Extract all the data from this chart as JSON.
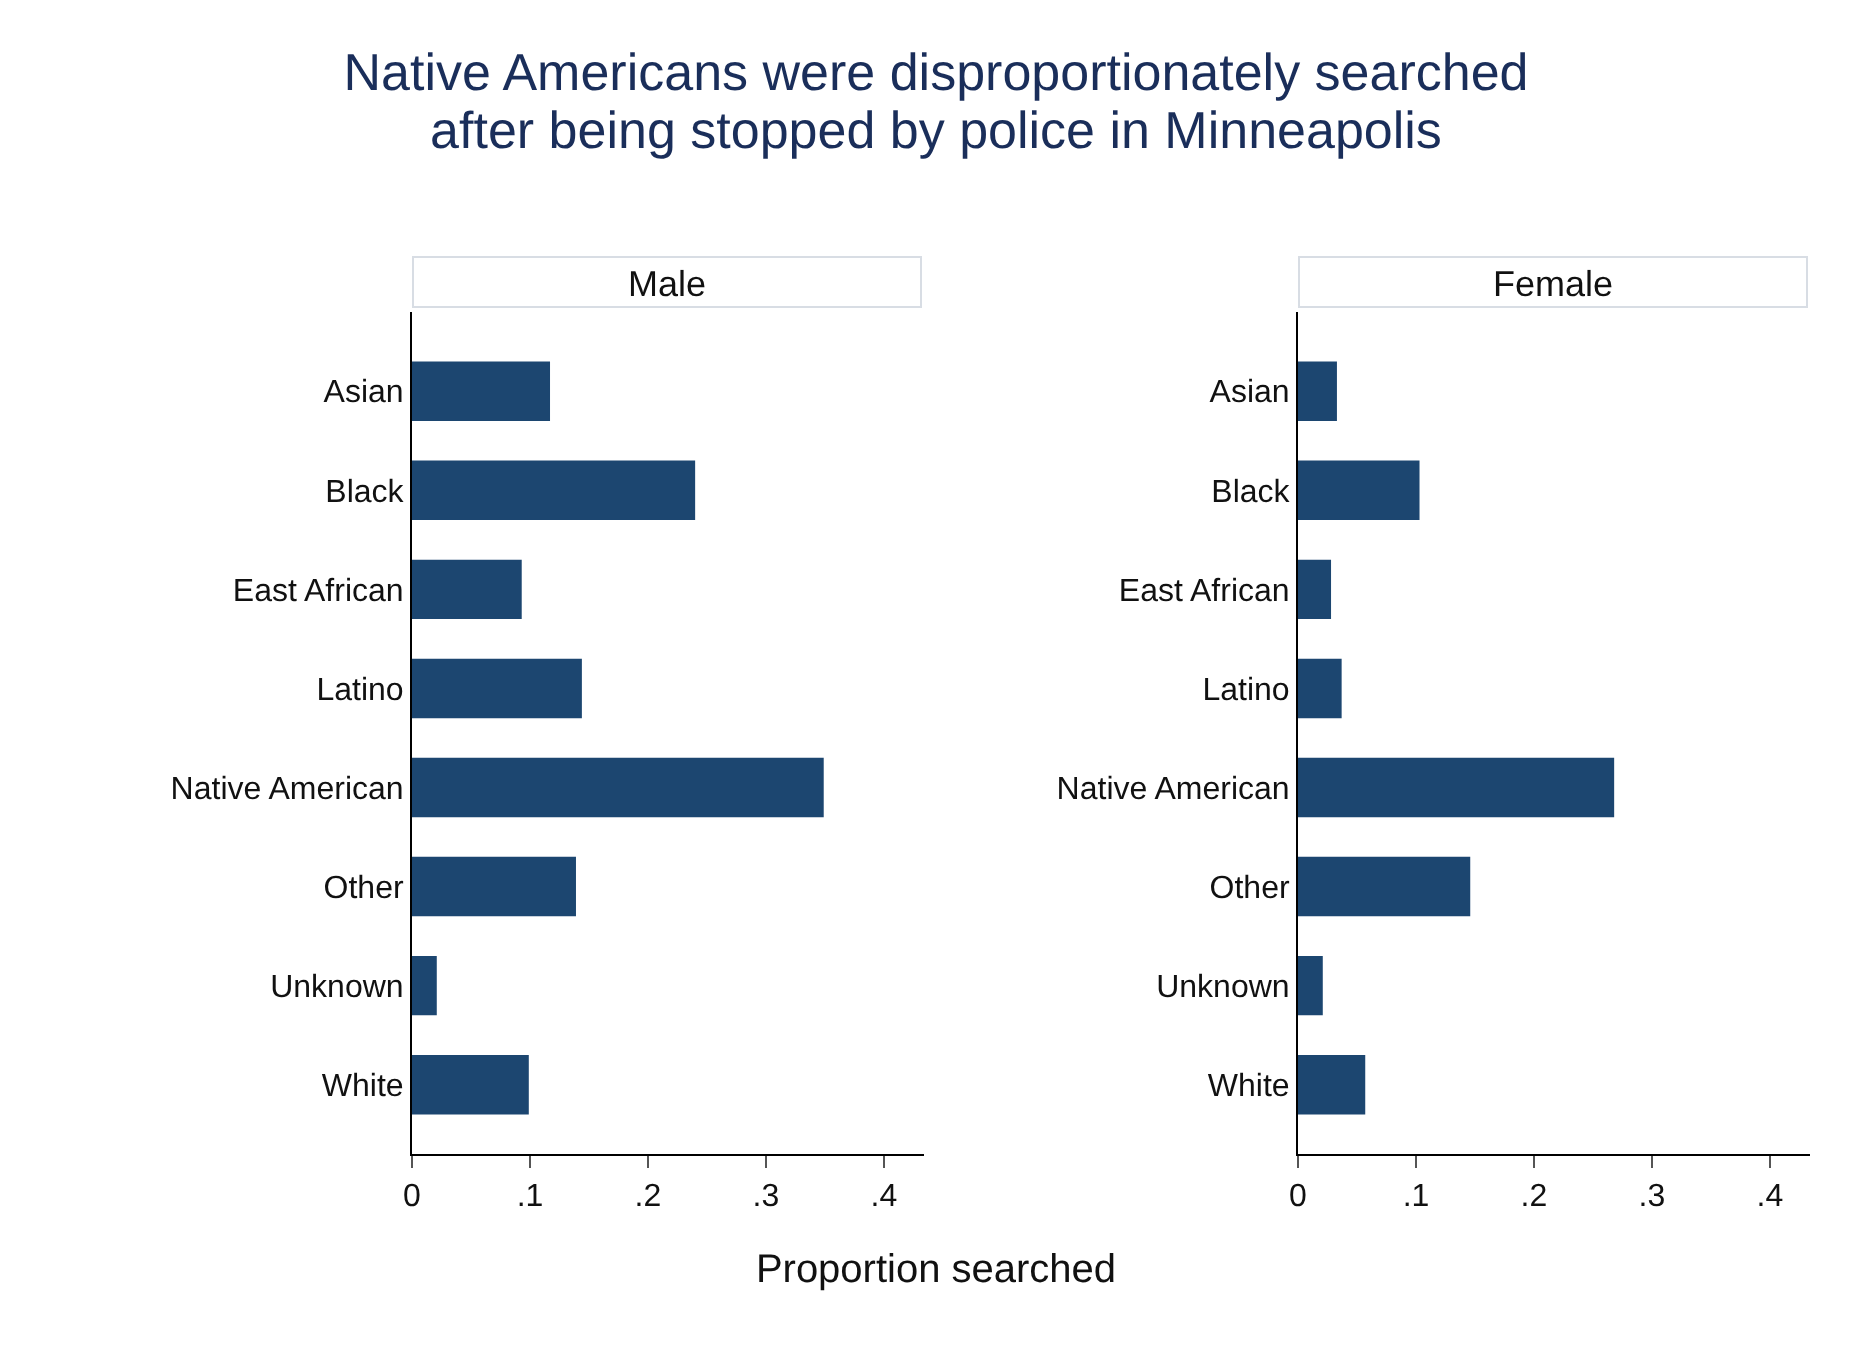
{
  "chart_data": [
    {
      "type": "bar",
      "orientation": "horizontal",
      "title": "Native Americans were disproportionately searched after being stopped by police in Minneapolis",
      "subtitle": "Male",
      "xlabel": "Proportion searched",
      "categories": [
        "Asian",
        "Black",
        "East African",
        "Latino",
        "Native American",
        "Other",
        "Unknown",
        "White"
      ],
      "values": [
        0.117,
        0.24,
        0.093,
        0.144,
        0.349,
        0.139,
        0.021,
        0.099
      ],
      "color": "#1c4670",
      "xlim": [
        0,
        0.434
      ],
      "xticks": [
        0,
        {
          "value": 0.1,
          "label": ".1"
        },
        {
          "value": 0.2,
          "label": ".2"
        },
        {
          "value": 0.3,
          "label": ".3"
        },
        {
          "value": 0.4,
          "label": ".4"
        }
      ]
    },
    {
      "type": "bar",
      "orientation": "horizontal",
      "subtitle": "Female",
      "categories": [
        "Asian",
        "Black",
        "East African",
        "Latino",
        "Native American",
        "Other",
        "Unknown",
        "White"
      ],
      "values": [
        0.033,
        0.103,
        0.028,
        0.037,
        0.268,
        0.146,
        0.021,
        0.057
      ],
      "color": "#1c4670",
      "xlim": [
        0,
        0.434
      ],
      "xticks": [
        0,
        {
          "value": 0.1,
          "label": ".1"
        },
        {
          "value": 0.2,
          "label": ".2"
        },
        {
          "value": 0.3,
          "label": ".3"
        },
        {
          "value": 0.4,
          "label": ".4"
        }
      ]
    }
  ]
}
